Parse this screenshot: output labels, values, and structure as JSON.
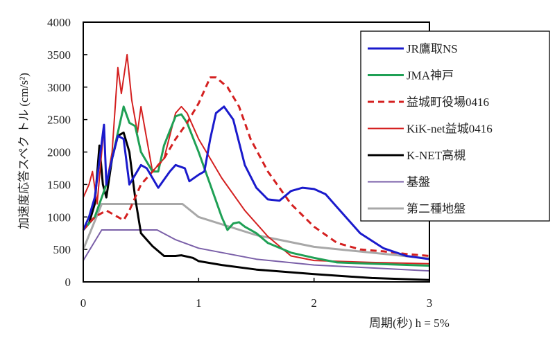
{
  "chart_data": {
    "type": "line",
    "title": "",
    "xlabel": "周期(秒)  h = 5%",
    "ylabel": "加速度応答スペク トル (cm/s²)",
    "xlim": [
      0,
      3
    ],
    "ylim": [
      0,
      4000
    ],
    "xticks": [
      "0",
      "1",
      "2",
      "3"
    ],
    "xtick_values": [
      0,
      1,
      2,
      3
    ],
    "yticks": [
      "0",
      "500",
      "1000",
      "1500",
      "2000",
      "2500",
      "3000",
      "3500",
      "4000"
    ],
    "ytick_values": [
      0,
      500,
      1000,
      1500,
      2000,
      2500,
      3000,
      3500,
      4000
    ],
    "grid": false,
    "legend_position": "top-right",
    "series": [
      {
        "name": "JR鷹取NS",
        "color": "#1a1acc",
        "width": 3,
        "dash": "",
        "x": [
          0,
          0.05,
          0.1,
          0.15,
          0.18,
          0.2,
          0.25,
          0.3,
          0.35,
          0.4,
          0.5,
          0.55,
          0.65,
          0.75,
          0.8,
          0.88,
          0.92,
          1.0,
          1.05,
          1.1,
          1.15,
          1.22,
          1.3,
          1.4,
          1.5,
          1.6,
          1.7,
          1.8,
          1.9,
          2.0,
          2.1,
          2.2,
          2.4,
          2.6,
          2.8,
          3.0
        ],
        "y": [
          800,
          1000,
          1300,
          2000,
          2420,
          1500,
          1900,
          2250,
          2200,
          1500,
          1800,
          1750,
          1450,
          1700,
          1800,
          1750,
          1550,
          1650,
          1700,
          2200,
          2600,
          2700,
          2500,
          1800,
          1450,
          1270,
          1250,
          1400,
          1450,
          1430,
          1350,
          1150,
          750,
          520,
          400,
          350
        ]
      },
      {
        "name": "JMA神戸",
        "color": "#1fa055",
        "width": 3,
        "dash": "",
        "x": [
          0,
          0.1,
          0.2,
          0.3,
          0.35,
          0.4,
          0.45,
          0.5,
          0.6,
          0.65,
          0.7,
          0.8,
          0.85,
          0.9,
          1.0,
          1.1,
          1.2,
          1.25,
          1.3,
          1.35,
          1.4,
          1.5,
          1.6,
          1.8,
          2.0,
          2.2,
          2.5,
          3.0
        ],
        "y": [
          800,
          1000,
          1500,
          2300,
          2700,
          2450,
          2400,
          2000,
          1700,
          1700,
          2100,
          2550,
          2580,
          2450,
          2000,
          1500,
          1000,
          800,
          900,
          920,
          850,
          750,
          600,
          450,
          370,
          300,
          280,
          250
        ]
      },
      {
        "name": "益城町役場0416",
        "color": "#d42020",
        "width": 3,
        "dash": "9,6",
        "x": [
          0,
          0.1,
          0.2,
          0.3,
          0.35,
          0.4,
          0.5,
          0.6,
          0.7,
          0.8,
          0.9,
          1.0,
          1.1,
          1.15,
          1.25,
          1.35,
          1.45,
          1.6,
          1.8,
          2.0,
          2.2,
          2.4,
          2.6,
          2.8,
          3.0
        ],
        "y": [
          800,
          1000,
          1100,
          1000,
          950,
          1100,
          1500,
          1700,
          1900,
          2200,
          2450,
          2750,
          3150,
          3150,
          3000,
          2700,
          2200,
          1700,
          1200,
          850,
          600,
          500,
          470,
          430,
          400
        ]
      },
      {
        "name": "KiK-net益城0416",
        "color": "#d42020",
        "width": 2,
        "dash": "",
        "x": [
          0,
          0.05,
          0.08,
          0.12,
          0.18,
          0.2,
          0.25,
          0.3,
          0.33,
          0.38,
          0.42,
          0.47,
          0.5,
          0.55,
          0.6,
          0.7,
          0.8,
          0.85,
          0.9,
          1.0,
          1.1,
          1.2,
          1.4,
          1.6,
          1.8,
          2.0,
          2.5,
          3.0
        ],
        "y": [
          1300,
          1500,
          1700,
          1200,
          2400,
          1500,
          2000,
          3300,
          2900,
          3500,
          2800,
          2300,
          2700,
          2200,
          1700,
          1900,
          2600,
          2700,
          2600,
          2200,
          1900,
          1600,
          1100,
          700,
          400,
          330,
          300,
          280
        ]
      },
      {
        "name": "K-NET高槻",
        "color": "#000000",
        "width": 3,
        "dash": "",
        "x": [
          0,
          0.05,
          0.1,
          0.14,
          0.17,
          0.2,
          0.25,
          0.3,
          0.35,
          0.4,
          0.45,
          0.5,
          0.6,
          0.7,
          0.8,
          0.85,
          0.95,
          1.0,
          1.2,
          1.5,
          2.0,
          2.5,
          3.0
        ],
        "y": [
          800,
          900,
          1200,
          2100,
          1500,
          1300,
          1900,
          2250,
          2300,
          2000,
          1300,
          750,
          550,
          400,
          400,
          410,
          370,
          320,
          260,
          190,
          120,
          60,
          30
        ]
      },
      {
        "name": "基盤",
        "color": "#7a5fa8",
        "width": 2,
        "dash": "",
        "x": [
          0,
          0.16,
          0.64,
          0.8,
          1.0,
          1.5,
          2.0,
          3.0
        ],
        "y": [
          330,
          800,
          800,
          650,
          520,
          350,
          260,
          170
        ]
      },
      {
        "name": "第二種地盤",
        "color": "#a8a8a8",
        "width": 3,
        "dash": "",
        "x": [
          0,
          0.16,
          0.86,
          1.0,
          1.5,
          2.0,
          3.0
        ],
        "y": [
          500,
          1200,
          1200,
          1000,
          720,
          540,
          360
        ]
      }
    ]
  }
}
